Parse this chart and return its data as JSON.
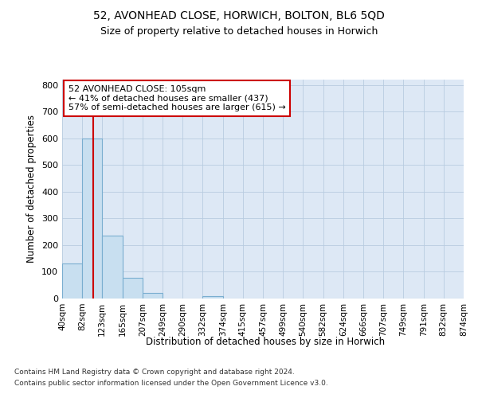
{
  "title1": "52, AVONHEAD CLOSE, HORWICH, BOLTON, BL6 5QD",
  "title2": "Size of property relative to detached houses in Horwich",
  "xlabel": "Distribution of detached houses by size in Horwich",
  "ylabel": "Number of detached properties",
  "bin_edges": [
    40,
    82,
    123,
    165,
    207,
    249,
    290,
    332,
    374,
    415,
    457,
    499,
    540,
    582,
    624,
    666,
    707,
    749,
    791,
    832,
    874
  ],
  "bar_heights": [
    130,
    600,
    235,
    78,
    22,
    0,
    0,
    10,
    0,
    0,
    0,
    0,
    0,
    0,
    0,
    0,
    0,
    0,
    0,
    0
  ],
  "bar_color": "#c8dff0",
  "bar_edge_color": "#7aaed0",
  "vline_x": 105,
  "vline_color": "#cc0000",
  "annotation_text": "52 AVONHEAD CLOSE: 105sqm\n← 41% of detached houses are smaller (437)\n57% of semi-detached houses are larger (615) →",
  "annotation_box_facecolor": "#ffffff",
  "annotation_box_edgecolor": "#cc0000",
  "ylim": [
    0,
    820
  ],
  "yticks": [
    0,
    100,
    200,
    300,
    400,
    500,
    600,
    700,
    800
  ],
  "footer1": "Contains HM Land Registry data © Crown copyright and database right 2024.",
  "footer2": "Contains public sector information licensed under the Open Government Licence v3.0.",
  "fig_facecolor": "#ffffff",
  "axes_facecolor": "#dde8f5",
  "grid_color": "#b8cce0"
}
